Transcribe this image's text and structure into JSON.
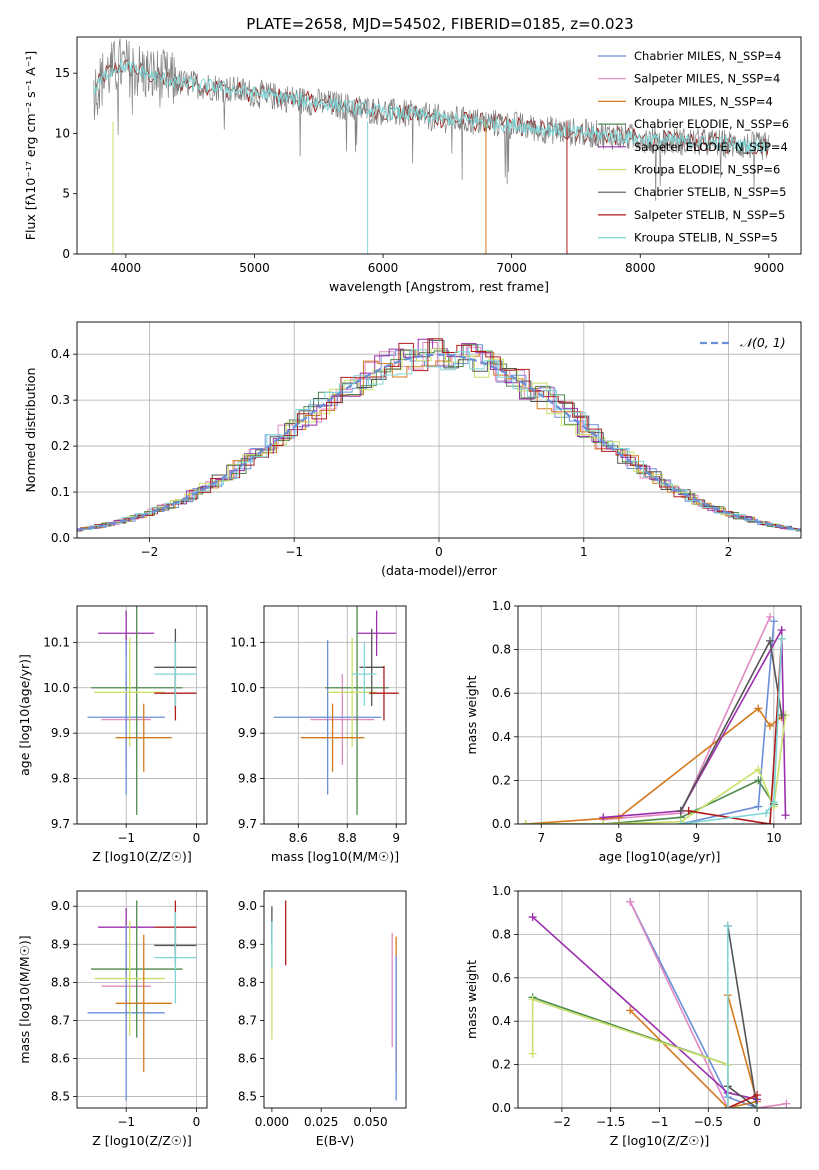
{
  "figure_title": "PLATE=2658, MJD=54502, FIBERID=0185, z=0.023",
  "chart_data": [
    {
      "id": "spectrum",
      "type": "line",
      "title": "PLATE=2658, MJD=54502, FIBERID=0185, z=0.023",
      "xlabel": "wavelength [Angstrom, rest frame]",
      "ylabel": "Flux [fλ10⁻¹⁷ erg cm⁻² s⁻¹ A⁻¹]",
      "xlim": [
        3620,
        9250
      ],
      "ylim": [
        0,
        18
      ],
      "xticks": [
        4000,
        5000,
        6000,
        7000,
        8000,
        9000
      ],
      "yticks": [
        0,
        5,
        10,
        15
      ],
      "grid": false,
      "legend_position": "top-right",
      "series": [
        {
          "name": "Chabrier MILES, N_SSP=4",
          "color": "#6a8fd8"
        },
        {
          "name": "Salpeter MILES, N_SSP=4",
          "color": "#e08ac4"
        },
        {
          "name": "Kroupa MILES, N_SSP=4",
          "color": "#d47a1e"
        },
        {
          "name": "Chabrier ELODIE, N_SSP=6",
          "color": "#4f8a4f"
        },
        {
          "name": "Salpeter ELODIE, N_SSP=4",
          "color": "#9b2fae"
        },
        {
          "name": "Kroupa ELODIE, N_SSP=6",
          "color": "#c9e06a"
        },
        {
          "name": "Chabrier STELIB, N_SSP=5",
          "color": "#555555"
        },
        {
          "name": "Salpeter STELIB, N_SSP=5",
          "color": "#b01c1c"
        },
        {
          "name": "Kroupa STELIB, N_SSP=5",
          "color": "#7fd6d6"
        }
      ],
      "data_color": "#808080",
      "model_color": "#7fd6d6",
      "continuum_x": [
        3750,
        3850,
        3950,
        4050,
        4200,
        4400,
        4600,
        4800,
        5000,
        5200,
        5400,
        5600,
        5800,
        6000,
        6200,
        6400,
        6600,
        6800,
        7000,
        7200,
        7400,
        7600,
        7800,
        8000,
        8200,
        8400,
        8600,
        8800,
        9000
      ],
      "continuum_y": [
        13.5,
        15.0,
        15.6,
        15.4,
        14.8,
        14.2,
        14.0,
        13.7,
        13.3,
        13.0,
        12.7,
        12.4,
        12.1,
        11.8,
        11.6,
        11.3,
        11.1,
        10.9,
        10.7,
        10.4,
        10.2,
        10.0,
        9.8,
        9.6,
        9.4,
        9.3,
        9.2,
        9.0,
        8.9
      ]
    },
    {
      "id": "residuals",
      "type": "line",
      "xlabel": "(data-model)/error",
      "ylabel": "Normed distribution",
      "xlim": [
        -2.5,
        2.5
      ],
      "ylim": [
        0,
        0.47
      ],
      "xticks": [
        -2,
        -1,
        0,
        1,
        2
      ],
      "yticks": [
        0.0,
        0.1,
        0.2,
        0.3,
        0.4
      ],
      "grid": true,
      "legend": "𝒩(0, 1)",
      "legend_position": "top-right"
    },
    {
      "id": "age-vs-Z",
      "type": "scatter",
      "xlabel": "Z [log10(Z/Z☉)]",
      "ylabel": "age  [log10(age/yr)]",
      "xlim": [
        -1.7,
        0.15
      ],
      "ylim": [
        9.7,
        10.18
      ],
      "xticks": [
        -1,
        0
      ],
      "yticks": [
        9.7,
        9.8,
        9.9,
        10.0,
        10.1
      ],
      "grid": true,
      "points": [
        {
          "color": "#9b2fae",
          "x": -1.0,
          "xerr": 0.4,
          "y": 10.12,
          "yerr": 0.05
        },
        {
          "color": "#e08ac4",
          "x": -1.0,
          "xerr": 0.35,
          "y": 9.93,
          "yerr": 0.1
        },
        {
          "color": "#6a8fd8",
          "x": -1.0,
          "xerr": 0.55,
          "y": 9.935,
          "yerr": 0.17
        },
        {
          "color": "#4f8a4f",
          "x": -0.85,
          "xerr": 0.65,
          "y": 10.0,
          "yerr": 0.28
        },
        {
          "color": "#c9e06a",
          "x": -0.95,
          "xerr": 0.5,
          "y": 9.99,
          "yerr": 0.12
        },
        {
          "color": "#d47a1e",
          "x": -0.75,
          "xerr": 0.4,
          "y": 9.89,
          "yerr": 0.075
        },
        {
          "color": "#555555",
          "x": -0.3,
          "xerr": 0.3,
          "y": 10.045,
          "yerr": 0.085
        },
        {
          "color": "#b01c1c",
          "x": -0.3,
          "xerr": 0.3,
          "y": 9.988,
          "yerr": 0.06
        },
        {
          "color": "#7fd6d6",
          "x": -0.3,
          "xerr": 0.3,
          "y": 10.03,
          "yerr": 0.07
        }
      ]
    },
    {
      "id": "age-vs-mass",
      "type": "scatter",
      "xlabel": "mass [log10(M/M☉)]",
      "ylabel": "",
      "xlim": [
        8.46,
        9.04
      ],
      "ylim": [
        9.7,
        10.18
      ],
      "xticks": [
        8.6,
        8.8,
        9.0
      ],
      "yticks": [
        9.7,
        9.8,
        9.9,
        10.0,
        10.1
      ],
      "grid": true,
      "points": [
        {
          "color": "#9b2fae",
          "x": 8.92,
          "xerr": 0.08,
          "y": 10.12,
          "yerr": 0.05
        },
        {
          "color": "#e08ac4",
          "x": 8.78,
          "xerr": 0.13,
          "y": 9.93,
          "yerr": 0.1
        },
        {
          "color": "#6a8fd8",
          "x": 8.72,
          "xerr": 0.22,
          "y": 9.935,
          "yerr": 0.17
        },
        {
          "color": "#4f8a4f",
          "x": 8.84,
          "xerr": 0.13,
          "y": 10.0,
          "yerr": 0.28
        },
        {
          "color": "#c9e06a",
          "x": 8.82,
          "xerr": 0.1,
          "y": 9.99,
          "yerr": 0.12
        },
        {
          "color": "#d47a1e",
          "x": 8.74,
          "xerr": 0.13,
          "y": 9.89,
          "yerr": 0.075
        },
        {
          "color": "#555555",
          "x": 8.9,
          "xerr": 0.05,
          "y": 10.045,
          "yerr": 0.085
        },
        {
          "color": "#b01c1c",
          "x": 8.95,
          "xerr": 0.06,
          "y": 9.988,
          "yerr": 0.06
        },
        {
          "color": "#7fd6d6",
          "x": 8.87,
          "xerr": 0.05,
          "y": 10.03,
          "yerr": 0.07
        }
      ]
    },
    {
      "id": "massweight-vs-age",
      "type": "line",
      "xlabel": "age  [log10(age/yr)]",
      "ylabel": "mass weight",
      "xlim": [
        6.7,
        10.35
      ],
      "ylim": [
        0,
        1.0
      ],
      "xticks": [
        7,
        8,
        9,
        10
      ],
      "yticks": [
        0.0,
        0.2,
        0.4,
        0.6,
        0.8,
        1.0
      ],
      "grid": true,
      "series": [
        {
          "color": "#6a8fd8",
          "x": [
            8.8,
            9.8,
            10.0
          ],
          "y": [
            0.0,
            0.08,
            0.93
          ]
        },
        {
          "color": "#e08ac4",
          "x": [
            7.8,
            8.8,
            9.95
          ],
          "y": [
            0.02,
            0.05,
            0.95
          ]
        },
        {
          "color": "#d47a1e",
          "x": [
            6.8,
            8.0,
            9.8,
            9.95,
            10.1
          ],
          "y": [
            0.0,
            0.03,
            0.53,
            0.45,
            0.49
          ]
        },
        {
          "color": "#4f8a4f",
          "x": [
            6.8,
            7.8,
            8.8,
            9.8,
            10.0
          ],
          "y": [
            0.0,
            0.0,
            0.03,
            0.2,
            0.09
          ]
        },
        {
          "color": "#9b2fae",
          "x": [
            7.8,
            8.8,
            10.1,
            10.15
          ],
          "y": [
            0.03,
            0.06,
            0.89,
            0.04
          ]
        },
        {
          "color": "#c9e06a",
          "x": [
            6.8,
            7.8,
            8.8,
            9.8,
            10.0,
            10.15
          ],
          "y": [
            0.0,
            0.0,
            0.01,
            0.25,
            0.08,
            0.5
          ]
        },
        {
          "color": "#555555",
          "x": [
            8.8,
            9.95,
            10.1
          ],
          "y": [
            0.06,
            0.84,
            0.5
          ]
        },
        {
          "color": "#b01c1c",
          "x": [
            8.9,
            9.95,
            10.1
          ],
          "y": [
            0.06,
            0.0,
            0.85
          ]
        },
        {
          "color": "#7fd6d6",
          "x": [
            8.8,
            9.9,
            10.0,
            10.1
          ],
          "y": [
            0.0,
            0.05,
            0.1,
            0.85
          ]
        }
      ]
    },
    {
      "id": "mass-vs-Z",
      "type": "scatter",
      "xlabel": "Z [log10(Z/Z☉)]",
      "ylabel": "mass [log10(M/M☉)]",
      "xlim": [
        -1.7,
        0.15
      ],
      "ylim": [
        8.47,
        9.04
      ],
      "xticks": [
        -1,
        0
      ],
      "yticks": [
        8.5,
        8.6,
        8.7,
        8.8,
        8.9,
        9.0
      ],
      "grid": true,
      "points": [
        {
          "color": "#9b2fae",
          "x": -1.0,
          "xerr": 0.4,
          "y": 8.945,
          "yerr": 0.05
        },
        {
          "color": "#e08ac4",
          "x": -1.0,
          "xerr": 0.35,
          "y": 8.79,
          "yerr": 0.14
        },
        {
          "color": "#6a8fd8",
          "x": -1.0,
          "xerr": 0.55,
          "y": 8.72,
          "yerr": 0.23
        },
        {
          "color": "#4f8a4f",
          "x": -0.85,
          "xerr": 0.65,
          "y": 8.835,
          "yerr": 0.18
        },
        {
          "color": "#c9e06a",
          "x": -0.95,
          "xerr": 0.5,
          "y": 8.81,
          "yerr": 0.15
        },
        {
          "color": "#d47a1e",
          "x": -0.75,
          "xerr": 0.4,
          "y": 8.745,
          "yerr": 0.18
        },
        {
          "color": "#555555",
          "x": -0.3,
          "xerr": 0.3,
          "y": 8.897,
          "yerr": 0.05
        },
        {
          "color": "#b01c1c",
          "x": -0.3,
          "xerr": 0.3,
          "y": 8.945,
          "yerr": 0.07
        },
        {
          "color": "#7fd6d6",
          "x": -0.3,
          "xerr": 0.3,
          "y": 8.865,
          "yerr": 0.12
        }
      ]
    },
    {
      "id": "mass-vs-ebv",
      "type": "scatter",
      "xlabel": "E(B-V)",
      "ylabel": "",
      "xlim": [
        -0.004,
        0.068
      ],
      "ylim": [
        8.47,
        9.04
      ],
      "xticks": [
        0.0,
        0.025,
        0.05
      ],
      "xtick_labels": [
        "0.000",
        "0.025",
        "0.050"
      ],
      "yticks": [
        8.5,
        8.6,
        8.7,
        8.8,
        8.9,
        9.0
      ],
      "grid": false,
      "points": [
        {
          "color": "#555555",
          "x": 0.0,
          "y": 8.95,
          "yerr": 0.05
        },
        {
          "color": "#c9e06a",
          "x": 0.0,
          "y": 8.77,
          "yerr": 0.12
        },
        {
          "color": "#7fd6d6",
          "x": 0.0,
          "y": 8.9,
          "yerr": 0.06
        },
        {
          "color": "#b01c1c",
          "x": 0.007,
          "y": 8.93,
          "yerr": 0.085
        },
        {
          "color": "#e08ac4",
          "x": 0.061,
          "y": 8.78,
          "yerr": 0.15
        },
        {
          "color": "#d47a1e",
          "x": 0.063,
          "y": 8.74,
          "yerr": 0.18
        },
        {
          "color": "#6a8fd8",
          "x": 0.063,
          "y": 8.68,
          "yerr": 0.19
        }
      ]
    },
    {
      "id": "massweight-vs-Z",
      "type": "line",
      "xlabel": "Z [log10(Z/Z☉)]",
      "ylabel": "mass weight",
      "xlim": [
        -2.45,
        0.45
      ],
      "ylim": [
        0,
        1.0
      ],
      "xticks": [
        -2.0,
        -1.5,
        -1.0,
        -0.5,
        0.0
      ],
      "yticks": [
        0.0,
        0.2,
        0.4,
        0.6,
        0.8,
        1.0
      ],
      "grid": true,
      "series": [
        {
          "color": "#6a8fd8",
          "x": [
            -1.3,
            -0.3,
            0.0
          ],
          "y": [
            0.95,
            0.05,
            0.0
          ]
        },
        {
          "color": "#e08ac4",
          "x": [
            -1.3,
            -0.3,
            0.0,
            0.3
          ],
          "y": [
            0.95,
            0.0,
            0.0,
            0.02
          ]
        },
        {
          "color": "#d47a1e",
          "x": [
            -1.3,
            -0.3,
            -0.3,
            0.0,
            -0.3
          ],
          "y": [
            0.45,
            0.0,
            0.52,
            0.03,
            0.0
          ]
        },
        {
          "color": "#4f8a4f",
          "x": [
            -2.3,
            -0.3,
            -0.3,
            0.0
          ],
          "y": [
            0.51,
            0.2,
            0.0,
            0.0
          ]
        },
        {
          "color": "#9b2fae",
          "x": [
            -2.3,
            -0.3,
            0.0
          ],
          "y": [
            0.88,
            0.07,
            0.04
          ]
        },
        {
          "color": "#c9e06a",
          "x": [
            -2.3,
            -2.3,
            -0.3,
            -0.3,
            0.0
          ],
          "y": [
            0.25,
            0.5,
            0.2,
            0.0,
            0.0
          ]
        },
        {
          "color": "#555555",
          "x": [
            -0.3,
            0.0,
            -0.3
          ],
          "y": [
            0.1,
            0.0,
            0.84
          ]
        },
        {
          "color": "#b01c1c",
          "x": [
            -0.3,
            0.0
          ],
          "y": [
            0.0,
            0.06
          ]
        },
        {
          "color": "#7fd6d6",
          "x": [
            -0.3,
            -0.3,
            0.0
          ],
          "y": [
            0.84,
            0.0,
            0.0
          ]
        }
      ]
    }
  ]
}
